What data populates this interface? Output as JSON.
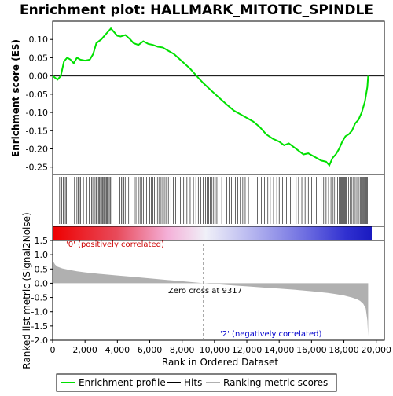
{
  "chart_data": {
    "type": "line",
    "title": "Enrichment plot: HALLMARK_MITOTIC_SPINDLE",
    "xlabel": "Rank in Ordered Dataset",
    "x_ticks": [
      "0",
      "2,000",
      "4,000",
      "6,000",
      "8,000",
      "10,000",
      "12,000",
      "14,000",
      "16,000",
      "18,000",
      "20,000"
    ],
    "xlim": [
      0,
      20500
    ],
    "n_genes": 19500,
    "enrichment": {
      "ylabel": "Enrichment score (ES)",
      "ylim": [
        -0.27,
        0.15
      ],
      "y_ticks": [
        "0.10",
        "0.05",
        "0.00",
        "-0.05",
        "-0.10",
        "-0.15",
        "-0.20",
        "-0.25"
      ],
      "y_tick_values": [
        0.1,
        0.05,
        0.0,
        -0.05,
        -0.1,
        -0.15,
        -0.2,
        -0.25
      ],
      "series_color": "#00e000",
      "x": [
        0,
        300,
        500,
        700,
        900,
        1100,
        1300,
        1500,
        1700,
        2000,
        2300,
        2500,
        2700,
        3000,
        3200,
        3400,
        3600,
        3800,
        4000,
        4200,
        4500,
        4800,
        5000,
        5300,
        5600,
        5900,
        6200,
        6500,
        6800,
        7100,
        7500,
        8000,
        8500,
        9000,
        9317,
        9800,
        10300,
        10800,
        11200,
        11600,
        12000,
        12400,
        12800,
        13200,
        13600,
        14000,
        14300,
        14600,
        14900,
        15200,
        15500,
        15800,
        16200,
        16600,
        16900,
        17100,
        17300,
        17500,
        17700,
        17900,
        18100,
        18300,
        18500,
        18700,
        18900,
        19100,
        19300,
        19450,
        19500
      ],
      "y": [
        0.0,
        -0.01,
        0.0,
        0.04,
        0.05,
        0.045,
        0.035,
        0.05,
        0.045,
        0.042,
        0.045,
        0.06,
        0.09,
        0.1,
        0.11,
        0.12,
        0.13,
        0.12,
        0.11,
        0.108,
        0.112,
        0.1,
        0.09,
        0.085,
        0.095,
        0.088,
        0.085,
        0.08,
        0.078,
        0.07,
        0.06,
        0.04,
        0.02,
        -0.005,
        -0.02,
        -0.04,
        -0.06,
        -0.08,
        -0.095,
        -0.105,
        -0.115,
        -0.125,
        -0.14,
        -0.16,
        -0.172,
        -0.18,
        -0.19,
        -0.185,
        -0.195,
        -0.205,
        -0.215,
        -0.212,
        -0.222,
        -0.232,
        -0.235,
        -0.245,
        -0.225,
        -0.215,
        -0.2,
        -0.18,
        -0.165,
        -0.16,
        -0.15,
        -0.13,
        -0.12,
        -0.1,
        -0.07,
        -0.03,
        0.0
      ]
    },
    "hits": {
      "color": "#000000",
      "positions": [
        430,
        560,
        650,
        780,
        860,
        950,
        1350,
        1500,
        1580,
        1650,
        1720,
        1900,
        2100,
        2250,
        2400,
        2480,
        2560,
        2620,
        2700,
        2760,
        2830,
        2900,
        2960,
        3020,
        3080,
        3150,
        3200,
        3260,
        3320,
        3380,
        3440,
        3500,
        3560,
        3650,
        4150,
        4250,
        4330,
        4400,
        4480,
        4600,
        4700,
        5050,
        5150,
        5300,
        5400,
        5500,
        5600,
        5700,
        5800,
        6000,
        6100,
        6200,
        6300,
        6400,
        6500,
        6600,
        6700,
        6800,
        6900,
        7000,
        7150,
        7300,
        7450,
        7600,
        7750,
        7900,
        8100,
        8300,
        8500,
        8700,
        8850,
        9000,
        9150,
        9300,
        9450,
        9550,
        9650,
        9750,
        9850,
        9950,
        10050,
        10150,
        10450,
        10750,
        10900,
        11050,
        11150,
        11300,
        11450,
        11600,
        11750,
        11900,
        12100,
        12650,
        12900,
        13100,
        13300,
        13450,
        13650,
        13850,
        14000,
        14200,
        14350,
        14450,
        14550,
        14700,
        15050,
        15200,
        15400,
        15600,
        15800,
        16000,
        16300,
        16600,
        16750,
        16900,
        17050,
        17200,
        17300,
        17400,
        17500,
        17600,
        17700,
        17750,
        17800,
        17850,
        17900,
        17950,
        18000,
        18050,
        18100,
        18150,
        18200,
        18300,
        18400,
        18500,
        18600,
        18700,
        18800,
        18900,
        19000,
        19050,
        19100,
        19150,
        19200,
        19250,
        19300,
        19350,
        19400,
        19450
      ]
    },
    "ranked_metric": {
      "ylabel": "Ranked list metric (Signal2Noise)",
      "ylim": [
        -2.0,
        1.5
      ],
      "y_ticks": [
        "1.5",
        "1.0",
        "0.5",
        "0.0",
        "-0.5",
        "-1.0",
        "-1.5",
        "-2.0"
      ],
      "y_tick_values": [
        1.5,
        1.0,
        0.5,
        0.0,
        -0.5,
        -1.0,
        -1.5,
        -2.0
      ],
      "fill_color": "#b0b0b0",
      "x": [
        0,
        50,
        150,
        300,
        600,
        1000,
        1500,
        2000,
        3000,
        4000,
        5000,
        6000,
        7000,
        8000,
        9000,
        9317,
        10000,
        11000,
        12000,
        13000,
        14000,
        15000,
        16000,
        17000,
        17500,
        18000,
        18500,
        18800,
        19000,
        19200,
        19350,
        19450,
        19500
      ],
      "y": [
        0.9,
        0.75,
        0.65,
        0.58,
        0.52,
        0.47,
        0.42,
        0.38,
        0.32,
        0.27,
        0.22,
        0.17,
        0.12,
        0.07,
        0.02,
        0.0,
        -0.03,
        -0.07,
        -0.11,
        -0.15,
        -0.19,
        -0.23,
        -0.28,
        -0.34,
        -0.38,
        -0.43,
        -0.5,
        -0.56,
        -0.62,
        -0.72,
        -0.88,
        -1.3,
        -1.85
      ]
    },
    "zero_cross": 9317,
    "annotations": {
      "positive": "'0' (positively correlated)",
      "negative": "'2' (negatively correlated)",
      "zero_cross": "Zero cross at 9317"
    },
    "legend": [
      {
        "label": "Enrichment profile",
        "color": "#00e000"
      },
      {
        "label": "Hits",
        "color": "#000000"
      },
      {
        "label": "Ranking metric scores",
        "color": "#b0b0b0"
      }
    ],
    "legend_placement": "bottom",
    "grid": false
  }
}
